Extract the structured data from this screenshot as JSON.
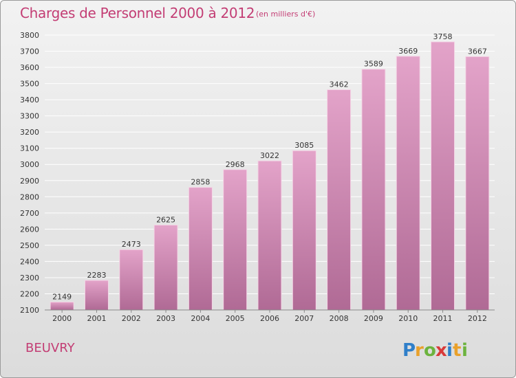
{
  "header": {
    "title": "Charges de Personnel 2000 à 2012",
    "subtitle": "(en milliers d'€)"
  },
  "footer": {
    "city": "BEUVRY",
    "logo_text": "Proxiti"
  },
  "colors": {
    "bar_top": "#e3a3c9",
    "bar_bottom": "#b06a95",
    "title": "#c33d74",
    "grid": "#ffffff"
  },
  "chart_data": {
    "type": "bar",
    "title": "Charges de Personnel 2000 à 2012",
    "subtitle": "(en milliers d'€)",
    "xlabel": "",
    "ylabel": "",
    "categories": [
      "2000",
      "2001",
      "2002",
      "2003",
      "2004",
      "2005",
      "2006",
      "2007",
      "2008",
      "2009",
      "2010",
      "2011",
      "2012"
    ],
    "values": [
      2149,
      2283,
      2473,
      2625,
      2858,
      2968,
      3022,
      3085,
      3462,
      3589,
      3669,
      3758,
      3667
    ],
    "ylim": [
      2100,
      3800
    ],
    "yticks": [
      2100,
      2200,
      2300,
      2400,
      2500,
      2600,
      2700,
      2800,
      2900,
      3000,
      3100,
      3200,
      3300,
      3400,
      3500,
      3600,
      3700,
      3800
    ],
    "grid": true,
    "legend": "none"
  }
}
